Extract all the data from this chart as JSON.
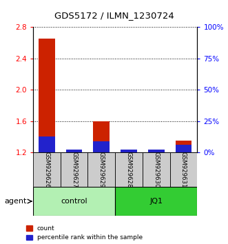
{
  "title": "GDS5172 / ILMN_1230724",
  "samples": [
    "GSM929626",
    "GSM929627",
    "GSM929629",
    "GSM929628",
    "GSM929630",
    "GSM929631"
  ],
  "count_values": [
    2.65,
    1.2,
    1.6,
    1.2,
    1.2,
    1.35
  ],
  "percentile_values": [
    5.0,
    1.0,
    3.5,
    1.0,
    1.0,
    2.5
  ],
  "pct_scale": 0.04,
  "groups": [
    {
      "label": "control",
      "start": 0,
      "end": 3,
      "color": "#b3f0b3"
    },
    {
      "label": "JQ1",
      "start": 3,
      "end": 6,
      "color": "#33cc33"
    }
  ],
  "ylim_left": [
    1.2,
    2.8
  ],
  "yticks_left": [
    1.2,
    1.6,
    2.0,
    2.4,
    2.8
  ],
  "yticks_right": [
    0,
    25,
    50,
    75,
    100
  ],
  "bar_width": 0.6,
  "count_color": "#cc2200",
  "percentile_color": "#2222cc",
  "agent_label": "agent",
  "legend_count": "count",
  "legend_pct": "percentile rank within the sample",
  "tick_label_area_color": "#cccccc",
  "bar_bottom": 1.2
}
